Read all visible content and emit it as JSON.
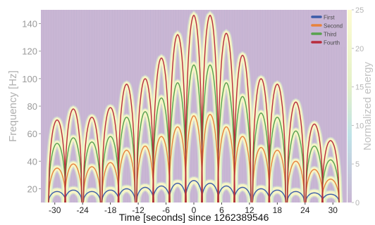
{
  "chart_data": {
    "type": "line",
    "title": "",
    "xlabel": "Time [seconds] since 1262389546",
    "ylabel": "Frequency [Hz]",
    "colorbar_label": "Normalized energy",
    "xlim": [
      -33,
      33
    ],
    "ylim": [
      10,
      150
    ],
    "xticks": [
      -30,
      -24,
      -18,
      -12,
      -6,
      0,
      6,
      12,
      18,
      24,
      30
    ],
    "yticks": [
      20,
      40,
      60,
      80,
      100,
      120,
      140
    ],
    "colorbar_range": [
      0,
      25
    ],
    "colorbar_ticks": [
      0,
      5,
      10,
      15,
      20,
      25
    ],
    "legend_position": "top-right",
    "grid": false,
    "background_color": "#c9b6d4",
    "arch_centers": [
      -29.5,
      -26,
      -22,
      -18,
      -14.5,
      -10.5,
      -7,
      -3.5,
      0,
      3.5,
      7,
      10.5,
      14.5,
      18,
      22,
      26,
      29.5
    ],
    "series": [
      {
        "name": "First",
        "color": "#3b5ba8",
        "values": [
          18,
          19,
          18,
          19,
          20,
          21,
          22,
          24,
          26,
          24,
          22,
          21,
          20,
          19,
          18,
          17,
          16
        ]
      },
      {
        "name": "Second",
        "color": "#e8823c",
        "values": [
          35,
          38,
          36,
          39,
          48,
          51,
          58,
          65,
          73,
          74,
          65,
          58,
          50,
          48,
          40,
          34,
          27
        ]
      },
      {
        "name": "Third",
        "color": "#58a24e",
        "values": [
          53,
          57,
          54,
          58,
          72,
          76,
          86,
          97,
          110,
          110,
          97,
          87,
          75,
          72,
          62,
          51,
          41
        ]
      },
      {
        "name": "Fourth",
        "color": "#b82c3c",
        "values": [
          70,
          78,
          72,
          79,
          96,
          100,
          115,
          132,
          146,
          146,
          133,
          117,
          100,
          96,
          83,
          67,
          55
        ]
      }
    ]
  }
}
